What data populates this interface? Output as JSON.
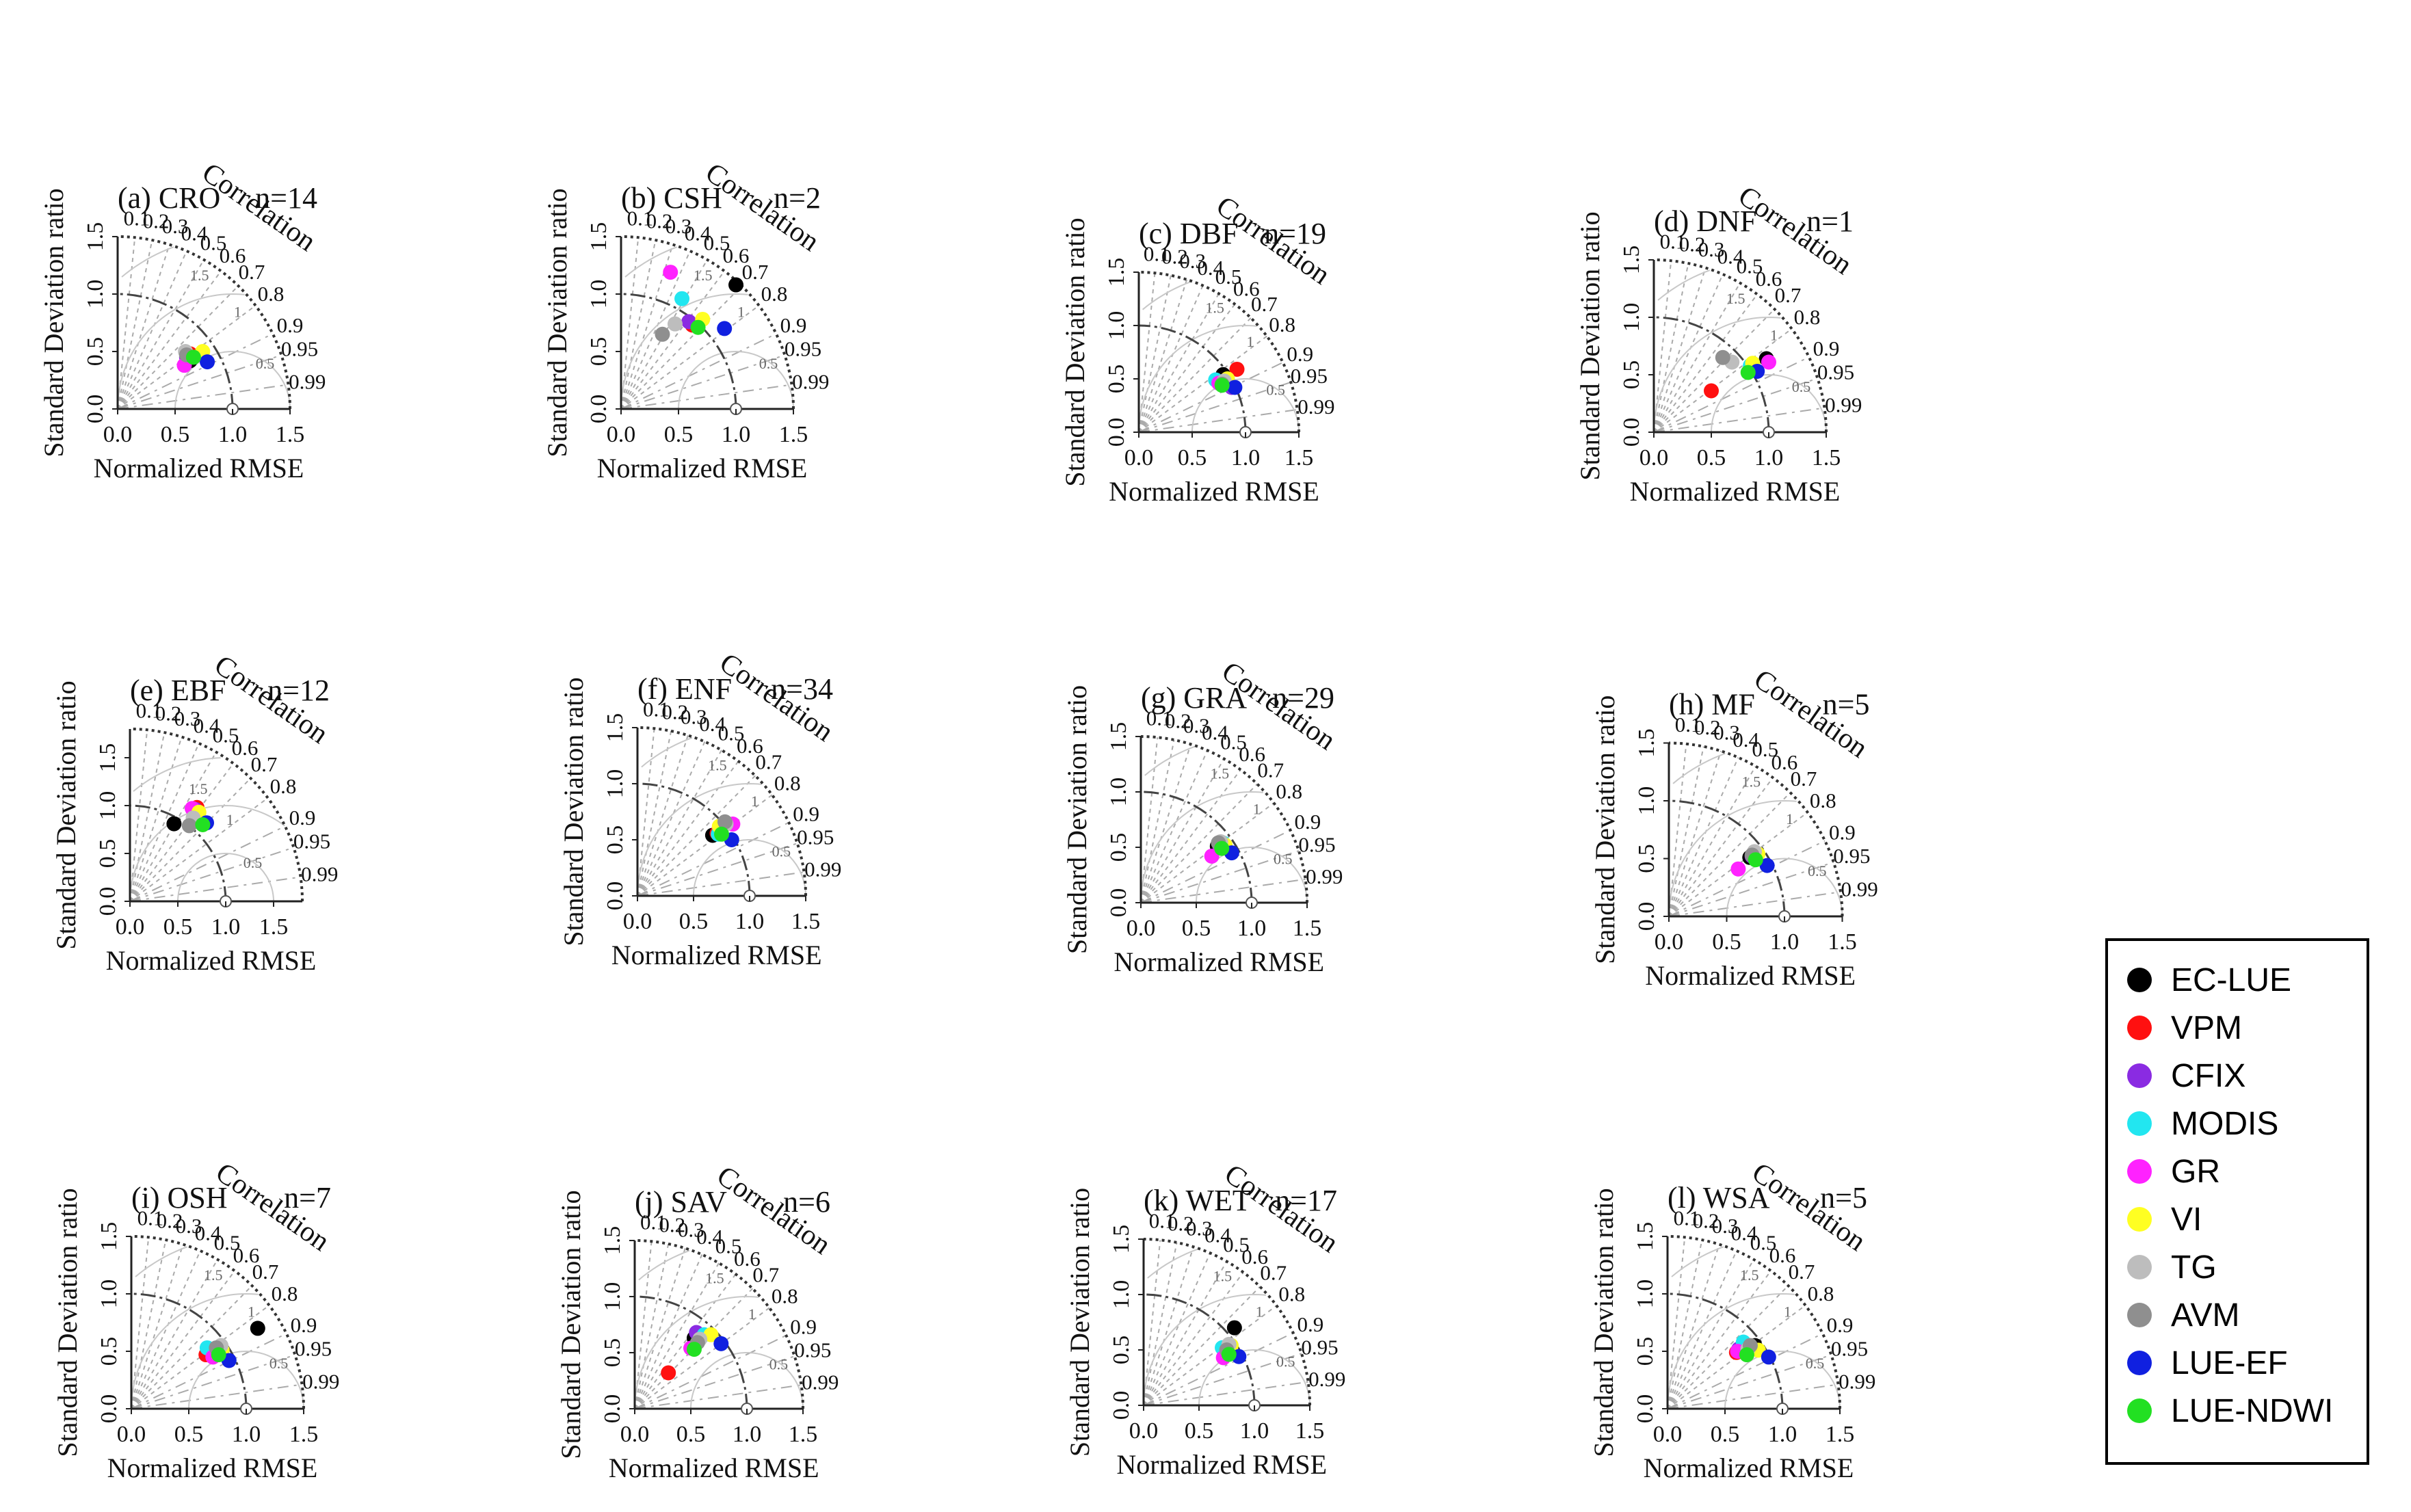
{
  "figure": {
    "x_axis_label": "Normalized RMSE",
    "y_axis_label": "Standard Deviation ratio",
    "arc_label": "Correlation"
  },
  "legend": [
    {
      "name": "EC-LUE",
      "color": "#000000"
    },
    {
      "name": "VPM",
      "color": "#ff1010"
    },
    {
      "name": "CFIX",
      "color": "#8a2be2"
    },
    {
      "name": "MODIS",
      "color": "#22e6f0"
    },
    {
      "name": "GR",
      "color": "#ff22ff"
    },
    {
      "name": "VI",
      "color": "#ffff22"
    },
    {
      "name": "TG",
      "color": "#bdbdbd"
    },
    {
      "name": "AVM",
      "color": "#8f8f8f"
    },
    {
      "name": "LUE-EF",
      "color": "#1020e0"
    },
    {
      "name": "LUE-NDWI",
      "color": "#22e022"
    }
  ],
  "chart_data": [
    {
      "type": "scatter",
      "title": "(a) CRO",
      "n": "n=14",
      "max_sd": 1.5,
      "x_ticks": [
        "0.0",
        "0.5",
        "1.0",
        "1.5"
      ],
      "y_ticks": [
        "0.0",
        "0.5",
        "1.0",
        "1.5"
      ],
      "correlation_ticks": [
        "0.1",
        "0.2",
        "0.3",
        "0.4",
        "0.5",
        "0.6",
        "0.7",
        "0.8",
        "0.9",
        "0.95",
        "0.99"
      ],
      "rmse_arc_labels": [
        "0.5",
        "1",
        "1.5"
      ],
      "points": [
        {
          "model": "EC-LUE",
          "x": 0.63,
          "y": 0.42
        },
        {
          "model": "VPM",
          "x": 0.63,
          "y": 0.48
        },
        {
          "model": "CFIX",
          "x": 0.6,
          "y": 0.45
        },
        {
          "model": "MODIS",
          "x": 0.62,
          "y": 0.46
        },
        {
          "model": "GR",
          "x": 0.58,
          "y": 0.38
        },
        {
          "model": "VI",
          "x": 0.74,
          "y": 0.5
        },
        {
          "model": "TG",
          "x": 0.59,
          "y": 0.5
        },
        {
          "model": "AVM",
          "x": 0.6,
          "y": 0.47
        },
        {
          "model": "LUE-EF",
          "x": 0.78,
          "y": 0.41
        },
        {
          "model": "LUE-NDWI",
          "x": 0.66,
          "y": 0.45
        }
      ]
    },
    {
      "type": "scatter",
      "title": "(b) CSH",
      "n": "n=2",
      "max_sd": 1.5,
      "x_ticks": [
        "0.0",
        "0.5",
        "1.0",
        "1.5"
      ],
      "y_ticks": [
        "0.0",
        "0.5",
        "1.0",
        "1.5"
      ],
      "correlation_ticks": [
        "0.1",
        "0.2",
        "0.3",
        "0.4",
        "0.5",
        "0.6",
        "0.7",
        "0.8",
        "0.9",
        "0.95",
        "0.99"
      ],
      "rmse_arc_labels": [
        "0.5",
        "1",
        "1.5"
      ],
      "points": [
        {
          "model": "EC-LUE",
          "x": 1.0,
          "y": 1.08
        },
        {
          "model": "VPM",
          "x": 0.62,
          "y": 0.73
        },
        {
          "model": "CFIX",
          "x": 0.59,
          "y": 0.76
        },
        {
          "model": "MODIS",
          "x": 0.53,
          "y": 0.96
        },
        {
          "model": "GR",
          "x": 0.43,
          "y": 1.19
        },
        {
          "model": "VI",
          "x": 0.71,
          "y": 0.78
        },
        {
          "model": "TG",
          "x": 0.47,
          "y": 0.74
        },
        {
          "model": "AVM",
          "x": 0.36,
          "y": 0.65
        },
        {
          "model": "LUE-EF",
          "x": 0.9,
          "y": 0.7
        },
        {
          "model": "LUE-NDWI",
          "x": 0.67,
          "y": 0.71
        }
      ]
    },
    {
      "type": "scatter",
      "title": "(c) DBF",
      "n": "n=19",
      "max_sd": 1.5,
      "x_ticks": [
        "0.0",
        "0.5",
        "1.0",
        "1.5"
      ],
      "y_ticks": [
        "0.0",
        "0.5",
        "1.0",
        "1.5"
      ],
      "correlation_ticks": [
        "0.1",
        "0.2",
        "0.3",
        "0.4",
        "0.5",
        "0.6",
        "0.7",
        "0.8",
        "0.9",
        "0.95",
        "0.99"
      ],
      "rmse_arc_labels": [
        "0.5",
        "1",
        "1.5"
      ],
      "points": [
        {
          "model": "EC-LUE",
          "x": 0.79,
          "y": 0.54
        },
        {
          "model": "VPM",
          "x": 0.92,
          "y": 0.59
        },
        {
          "model": "CFIX",
          "x": 0.87,
          "y": 0.42
        },
        {
          "model": "MODIS",
          "x": 0.72,
          "y": 0.49
        },
        {
          "model": "GR",
          "x": 0.75,
          "y": 0.46
        },
        {
          "model": "VI",
          "x": 0.83,
          "y": 0.5
        },
        {
          "model": "TG",
          "x": 0.8,
          "y": 0.48
        },
        {
          "model": "AVM",
          "x": 0.78,
          "y": 0.45
        },
        {
          "model": "LUE-EF",
          "x": 0.9,
          "y": 0.42
        },
        {
          "model": "LUE-NDWI",
          "x": 0.78,
          "y": 0.44
        }
      ]
    },
    {
      "type": "scatter",
      "title": "(d) DNF",
      "n": "n=1",
      "max_sd": 1.5,
      "x_ticks": [
        "0.0",
        "0.5",
        "1.0",
        "1.5"
      ],
      "y_ticks": [
        "0.0",
        "0.5",
        "1.0",
        "1.5"
      ],
      "correlation_ticks": [
        "0.1",
        "0.2",
        "0.3",
        "0.4",
        "0.5",
        "0.6",
        "0.7",
        "0.8",
        "0.9",
        "0.95",
        "0.99"
      ],
      "rmse_arc_labels": [
        "0.5",
        "1",
        "1.5"
      ],
      "points": [
        {
          "model": "EC-LUE",
          "x": 0.98,
          "y": 0.64
        },
        {
          "model": "VPM",
          "x": 0.5,
          "y": 0.36
        },
        {
          "model": "CFIX",
          "x": 0.86,
          "y": 0.56
        },
        {
          "model": "MODIS",
          "x": 0.84,
          "y": 0.58
        },
        {
          "model": "GR",
          "x": 1.0,
          "y": 0.61
        },
        {
          "model": "VI",
          "x": 0.86,
          "y": 0.6
        },
        {
          "model": "TG",
          "x": 0.68,
          "y": 0.61
        },
        {
          "model": "AVM",
          "x": 0.6,
          "y": 0.65
        },
        {
          "model": "LUE-EF",
          "x": 0.9,
          "y": 0.53
        },
        {
          "model": "LUE-NDWI",
          "x": 0.82,
          "y": 0.52
        }
      ]
    },
    {
      "type": "scatter",
      "title": "(e) EBF",
      "n": "n=12",
      "max_sd": 1.8,
      "x_ticks": [
        "0.0",
        "0.5",
        "1.0",
        "1.5"
      ],
      "y_ticks": [
        "0.0",
        "0.5",
        "1.0",
        "1.5"
      ],
      "correlation_ticks": [
        "0.1",
        "0.2",
        "0.3",
        "0.4",
        "0.5",
        "0.6",
        "0.7",
        "0.8",
        "0.9",
        "0.95",
        "0.99"
      ],
      "rmse_arc_labels": [
        "0.5",
        "1",
        "1.5"
      ],
      "points": [
        {
          "model": "EC-LUE",
          "x": 0.46,
          "y": 0.81
        },
        {
          "model": "VPM",
          "x": 0.7,
          "y": 0.98
        },
        {
          "model": "CFIX",
          "x": 0.68,
          "y": 0.96
        },
        {
          "model": "MODIS",
          "x": 0.7,
          "y": 0.92
        },
        {
          "model": "GR",
          "x": 0.65,
          "y": 0.97
        },
        {
          "model": "VI",
          "x": 0.72,
          "y": 0.93
        },
        {
          "model": "TG",
          "x": 0.66,
          "y": 0.87
        },
        {
          "model": "AVM",
          "x": 0.62,
          "y": 0.79
        },
        {
          "model": "LUE-EF",
          "x": 0.8,
          "y": 0.82
        },
        {
          "model": "LUE-NDWI",
          "x": 0.76,
          "y": 0.8
        }
      ]
    },
    {
      "type": "scatter",
      "title": "(f) ENF",
      "n": "n=34",
      "max_sd": 1.5,
      "x_ticks": [
        "0.0",
        "0.5",
        "1.0",
        "1.5"
      ],
      "y_ticks": [
        "0.0",
        "0.5",
        "1.0",
        "1.5"
      ],
      "correlation_ticks": [
        "0.1",
        "0.2",
        "0.3",
        "0.4",
        "0.5",
        "0.6",
        "0.7",
        "0.8",
        "0.9",
        "0.95",
        "0.99"
      ],
      "rmse_arc_labels": [
        "0.5",
        "1",
        "1.5"
      ],
      "points": [
        {
          "model": "EC-LUE",
          "x": 0.67,
          "y": 0.54
        },
        {
          "model": "VPM",
          "x": 0.71,
          "y": 0.56
        },
        {
          "model": "CFIX",
          "x": 0.73,
          "y": 0.58
        },
        {
          "model": "MODIS",
          "x": 0.72,
          "y": 0.55
        },
        {
          "model": "GR",
          "x": 0.85,
          "y": 0.64
        },
        {
          "model": "VI",
          "x": 0.73,
          "y": 0.62
        },
        {
          "model": "TG",
          "x": 0.79,
          "y": 0.64
        },
        {
          "model": "AVM",
          "x": 0.78,
          "y": 0.66
        },
        {
          "model": "LUE-EF",
          "x": 0.84,
          "y": 0.5
        },
        {
          "model": "LUE-NDWI",
          "x": 0.75,
          "y": 0.55
        }
      ]
    },
    {
      "type": "scatter",
      "title": "(g) GRA",
      "n": "n=29",
      "max_sd": 1.5,
      "x_ticks": [
        "0.0",
        "0.5",
        "1.0",
        "1.5"
      ],
      "y_ticks": [
        "0.0",
        "0.5",
        "1.0",
        "1.5"
      ],
      "correlation_ticks": [
        "0.1",
        "0.2",
        "0.3",
        "0.4",
        "0.5",
        "0.6",
        "0.7",
        "0.8",
        "0.9",
        "0.95",
        "0.99"
      ],
      "rmse_arc_labels": [
        "0.5",
        "1",
        "1.5"
      ],
      "points": [
        {
          "model": "EC-LUE",
          "x": 0.69,
          "y": 0.51
        },
        {
          "model": "VPM",
          "x": 0.73,
          "y": 0.53
        },
        {
          "model": "CFIX",
          "x": 0.71,
          "y": 0.52
        },
        {
          "model": "MODIS",
          "x": 0.74,
          "y": 0.54
        },
        {
          "model": "GR",
          "x": 0.64,
          "y": 0.42
        },
        {
          "model": "VI",
          "x": 0.76,
          "y": 0.52
        },
        {
          "model": "TG",
          "x": 0.72,
          "y": 0.55
        },
        {
          "model": "AVM",
          "x": 0.7,
          "y": 0.54
        },
        {
          "model": "LUE-EF",
          "x": 0.82,
          "y": 0.45
        },
        {
          "model": "LUE-NDWI",
          "x": 0.73,
          "y": 0.49
        }
      ]
    },
    {
      "type": "scatter",
      "title": "(h) MF",
      "n": "n=5",
      "max_sd": 1.5,
      "x_ticks": [
        "0.0",
        "0.5",
        "1.0",
        "1.5"
      ],
      "y_ticks": [
        "0.0",
        "0.5",
        "1.0",
        "1.5"
      ],
      "correlation_ticks": [
        "0.1",
        "0.2",
        "0.3",
        "0.4",
        "0.5",
        "0.6",
        "0.7",
        "0.8",
        "0.9",
        "0.95",
        "0.99"
      ],
      "rmse_arc_labels": [
        "0.5",
        "1",
        "1.5"
      ],
      "points": [
        {
          "model": "EC-LUE",
          "x": 0.7,
          "y": 0.51
        },
        {
          "model": "VPM",
          "x": 0.74,
          "y": 0.55
        },
        {
          "model": "CFIX",
          "x": 0.72,
          "y": 0.52
        },
        {
          "model": "MODIS",
          "x": 0.73,
          "y": 0.53
        },
        {
          "model": "GR",
          "x": 0.6,
          "y": 0.41
        },
        {
          "model": "VI",
          "x": 0.77,
          "y": 0.54
        },
        {
          "model": "TG",
          "x": 0.74,
          "y": 0.56
        },
        {
          "model": "AVM",
          "x": 0.72,
          "y": 0.53
        },
        {
          "model": "LUE-EF",
          "x": 0.85,
          "y": 0.44
        },
        {
          "model": "LUE-NDWI",
          "x": 0.75,
          "y": 0.49
        }
      ]
    },
    {
      "type": "scatter",
      "title": "(i) OSH",
      "n": "n=7",
      "max_sd": 1.5,
      "x_ticks": [
        "0.0",
        "0.5",
        "1.0",
        "1.5"
      ],
      "y_ticks": [
        "0.0",
        "0.5",
        "1.0",
        "1.5"
      ],
      "correlation_ticks": [
        "0.1",
        "0.2",
        "0.3",
        "0.4",
        "0.5",
        "0.6",
        "0.7",
        "0.8",
        "0.9",
        "0.95",
        "0.99"
      ],
      "rmse_arc_labels": [
        "0.5",
        "1",
        "1.5"
      ],
      "points": [
        {
          "model": "EC-LUE",
          "x": 1.1,
          "y": 0.7
        },
        {
          "model": "VPM",
          "x": 0.65,
          "y": 0.47
        },
        {
          "model": "CFIX",
          "x": 0.72,
          "y": 0.49
        },
        {
          "model": "MODIS",
          "x": 0.66,
          "y": 0.53
        },
        {
          "model": "GR",
          "x": 0.71,
          "y": 0.45
        },
        {
          "model": "VI",
          "x": 0.79,
          "y": 0.51
        },
        {
          "model": "TG",
          "x": 0.78,
          "y": 0.55
        },
        {
          "model": "AVM",
          "x": 0.74,
          "y": 0.53
        },
        {
          "model": "LUE-EF",
          "x": 0.85,
          "y": 0.42
        },
        {
          "model": "LUE-NDWI",
          "x": 0.76,
          "y": 0.47
        }
      ]
    },
    {
      "type": "scatter",
      "title": "(j) SAV",
      "n": "n=6",
      "max_sd": 1.5,
      "x_ticks": [
        "0.0",
        "0.5",
        "1.0",
        "1.5"
      ],
      "y_ticks": [
        "0.0",
        "0.5",
        "1.0",
        "1.5"
      ],
      "correlation_ticks": [
        "0.1",
        "0.2",
        "0.3",
        "0.4",
        "0.5",
        "0.6",
        "0.7",
        "0.8",
        "0.9",
        "0.95",
        "0.99"
      ],
      "rmse_arc_labels": [
        "0.5",
        "1",
        "1.5"
      ],
      "points": [
        {
          "model": "EC-LUE",
          "x": 0.53,
          "y": 0.63
        },
        {
          "model": "VPM",
          "x": 0.3,
          "y": 0.32
        },
        {
          "model": "CFIX",
          "x": 0.55,
          "y": 0.68
        },
        {
          "model": "MODIS",
          "x": 0.62,
          "y": 0.66
        },
        {
          "model": "GR",
          "x": 0.5,
          "y": 0.54
        },
        {
          "model": "VI",
          "x": 0.68,
          "y": 0.66
        },
        {
          "model": "TG",
          "x": 0.58,
          "y": 0.62
        },
        {
          "model": "AVM",
          "x": 0.56,
          "y": 0.59
        },
        {
          "model": "LUE-EF",
          "x": 0.77,
          "y": 0.58
        },
        {
          "model": "LUE-NDWI",
          "x": 0.53,
          "y": 0.53
        }
      ]
    },
    {
      "type": "scatter",
      "title": "(k) WET",
      "n": "n=17",
      "max_sd": 1.5,
      "x_ticks": [
        "0.0",
        "0.5",
        "1.0",
        "1.5"
      ],
      "y_ticks": [
        "0.0",
        "0.5",
        "1.0",
        "1.5"
      ],
      "correlation_ticks": [
        "0.1",
        "0.2",
        "0.3",
        "0.4",
        "0.5",
        "0.6",
        "0.7",
        "0.8",
        "0.9",
        "0.95",
        "0.99"
      ],
      "rmse_arc_labels": [
        "0.5",
        "1",
        "1.5"
      ],
      "points": [
        {
          "model": "EC-LUE",
          "x": 0.82,
          "y": 0.7
        },
        {
          "model": "VPM",
          "x": 0.73,
          "y": 0.48
        },
        {
          "model": "CFIX",
          "x": 0.75,
          "y": 0.5
        },
        {
          "model": "MODIS",
          "x": 0.71,
          "y": 0.52
        },
        {
          "model": "GR",
          "x": 0.72,
          "y": 0.43
        },
        {
          "model": "VI",
          "x": 0.79,
          "y": 0.54
        },
        {
          "model": "TG",
          "x": 0.77,
          "y": 0.55
        },
        {
          "model": "AVM",
          "x": 0.75,
          "y": 0.5
        },
        {
          "model": "LUE-EF",
          "x": 0.86,
          "y": 0.44
        },
        {
          "model": "LUE-NDWI",
          "x": 0.77,
          "y": 0.46
        }
      ]
    },
    {
      "type": "scatter",
      "title": "(l) WSA",
      "n": "n=5",
      "max_sd": 1.5,
      "x_ticks": [
        "0.0",
        "0.5",
        "1.0",
        "1.5"
      ],
      "y_ticks": [
        "0.0",
        "0.5",
        "1.0",
        "1.5"
      ],
      "correlation_ticks": [
        "0.1",
        "0.2",
        "0.3",
        "0.4",
        "0.5",
        "0.6",
        "0.7",
        "0.8",
        "0.9",
        "0.95",
        "0.99"
      ],
      "rmse_arc_labels": [
        "0.5",
        "1",
        "1.5"
      ],
      "points": [
        {
          "model": "EC-LUE",
          "x": 0.76,
          "y": 0.55
        },
        {
          "model": "VPM",
          "x": 0.6,
          "y": 0.49
        },
        {
          "model": "CFIX",
          "x": 0.62,
          "y": 0.52
        },
        {
          "model": "MODIS",
          "x": 0.66,
          "y": 0.58
        },
        {
          "model": "GR",
          "x": 0.61,
          "y": 0.5
        },
        {
          "model": "VI",
          "x": 0.79,
          "y": 0.51
        },
        {
          "model": "TG",
          "x": 0.7,
          "y": 0.52
        },
        {
          "model": "AVM",
          "x": 0.72,
          "y": 0.55
        },
        {
          "model": "LUE-EF",
          "x": 0.88,
          "y": 0.45
        },
        {
          "model": "LUE-NDWI",
          "x": 0.69,
          "y": 0.47
        }
      ]
    }
  ]
}
